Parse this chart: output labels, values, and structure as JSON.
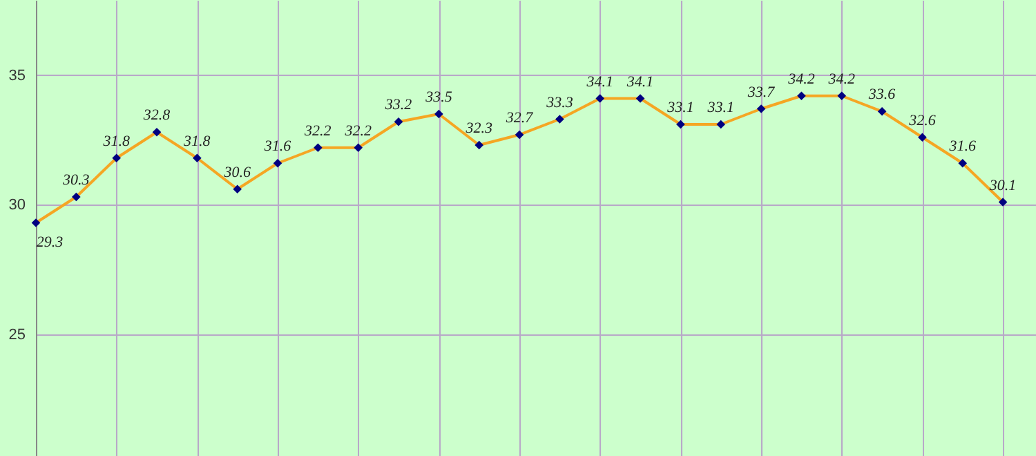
{
  "chart_data": {
    "type": "line",
    "categories": [
      null,
      null,
      null,
      null,
      null,
      null,
      null,
      null,
      null,
      null,
      null,
      null,
      null,
      null,
      null,
      null,
      null,
      null,
      null,
      null,
      null,
      null,
      null,
      null,
      null
    ],
    "series": [
      {
        "color": "#f5a623",
        "values": [
          29.3,
          30.3,
          31.8,
          32.8,
          31.8,
          30.6,
          31.6,
          32.2,
          32.2,
          33.2,
          33.5,
          32.3,
          32.7,
          33.3,
          34.1,
          34.1,
          33.1,
          33.1,
          33.7,
          34.2,
          34.2,
          33.6,
          32.6,
          31.6,
          30.1
        ]
      }
    ],
    "ylim": [
      20.3,
      37.9
    ],
    "yticks": [
      25,
      30,
      35
    ],
    "grid": true,
    "marker": "diamond",
    "line_style": "solid",
    "data_labels": true,
    "tick_labels": "y"
  }
}
